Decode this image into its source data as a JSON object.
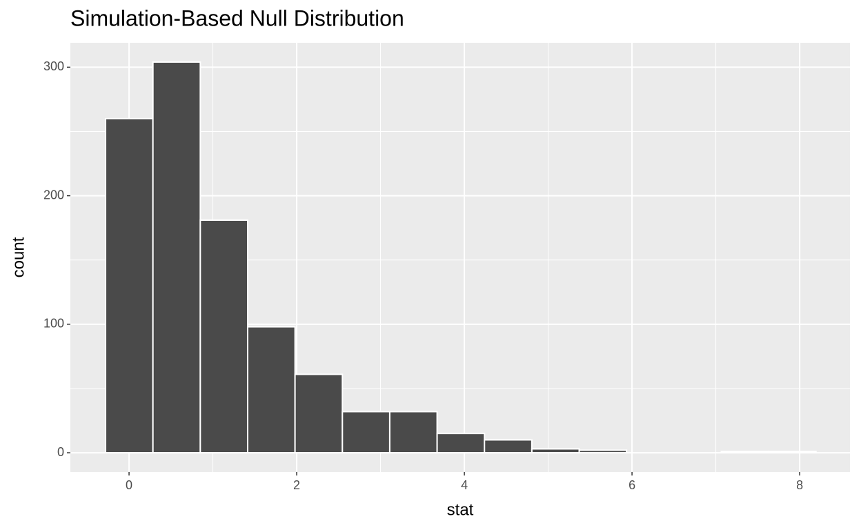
{
  "chart_data": {
    "type": "histogram",
    "title": "Simulation-Based Null Distribution",
    "x_label": "stat",
    "y_label": "count",
    "bins": [
      -0.28,
      0.285,
      0.85,
      1.415,
      1.98,
      2.545,
      3.11,
      3.675,
      4.24,
      4.805,
      5.37,
      5.935,
      6.5,
      7.065,
      7.63,
      8.195
    ],
    "values": [
      260,
      304,
      181,
      98,
      61,
      32,
      32,
      15,
      10,
      3,
      2,
      0,
      0,
      1,
      1
    ],
    "color": "#4a4a4a",
    "xlim": [
      -0.7,
      8.6
    ],
    "ylim": [
      -15,
      319
    ],
    "xticks": [
      0,
      2,
      4,
      6,
      8
    ],
    "yticks": [
      0,
      100,
      200,
      300
    ],
    "x_minor_grid": [
      1,
      3,
      5,
      7
    ],
    "y_minor_grid": [
      50,
      150,
      250
    ],
    "grid": true
  }
}
